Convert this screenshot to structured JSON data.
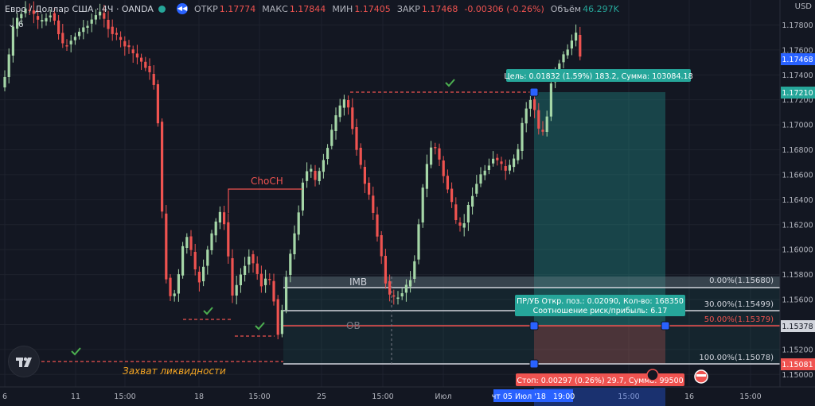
{
  "header": {
    "symbol": "Евро / Доллар США · 4Ч · OANDA",
    "open_label": "ОТКР",
    "open": "1.17774",
    "high_label": "МАКС",
    "high": "1.17844",
    "low_label": "МИН",
    "low": "1.17405",
    "close_label": "ЗАКР",
    "close": "1.17468",
    "change": "-0.00306 (-0.26%)",
    "volume_label": "Объём",
    "volume": "46.297K",
    "indicators_count": "6"
  },
  "currency": "USD",
  "price_axis": {
    "min": 1.149,
    "max": 1.18,
    "ticks": [
      "1.17800",
      "1.17600",
      "1.17400",
      "1.17200",
      "1.17000",
      "1.16800",
      "1.16600",
      "1.16400",
      "1.16200",
      "1.16000",
      "1.15800",
      "1.15600",
      "1.15400",
      "1.15200",
      "1.15000"
    ],
    "current_price": "1.17468",
    "target_price": "1.17210",
    "entry_price": "1.15378",
    "stop_price": "1.15081"
  },
  "time_axis": {
    "labels": [
      "6",
      "11",
      "15:00",
      "18",
      "15:00",
      "25",
      "15:00",
      "Июл",
      "15:00",
      "16",
      "15:00"
    ],
    "highlight": "чт 05 Июл '18   19:00"
  },
  "annotations": {
    "choch": "ChoCH",
    "imb": "IMB",
    "ob": "OB",
    "liquidity": "Захват ликвидности"
  },
  "fib_levels": [
    {
      "label": "0.00%(1.15680)",
      "price": 1.1568
    },
    {
      "label": "30.00%(1.15499)",
      "price": 1.15499
    },
    {
      "label": "50.00%(1.15379)",
      "price": 1.15379
    },
    {
      "label": "100.00%(1.15078)",
      "price": 1.15078
    }
  ],
  "position": {
    "target_label": "Цель: 0.01832 (1.59%) 183.2, Сумма: 103084.18",
    "rr_line1": "ПР/УБ Откр. поз.: 0.02090, Кол-во: 168350",
    "rr_line2": "Соотношение риск/прибыль: 6.17",
    "stop_label": "Стоп: 0.00297 (0.26%) 29.7, Сумма: 99500"
  },
  "colors": {
    "background": "#131722",
    "bull": "#a5d6a7",
    "bear": "#ef5350",
    "profit": "#26a69a",
    "loss": "#ef5350",
    "accent": "#2962ff"
  }
}
